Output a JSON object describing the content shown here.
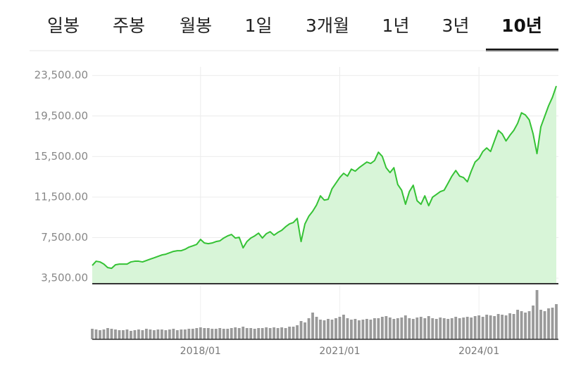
{
  "tabs": [
    "일봉",
    "주봉",
    "월봉",
    "1일",
    "3개월",
    "1년",
    "3년",
    "10년"
  ],
  "selected_tab": 7,
  "chart_data": [
    {
      "type": "area",
      "color": "#35c235",
      "fill": "#d8f5d8",
      "x": [
        "2015/09",
        "2015/10",
        "2015/11",
        "2015/12",
        "2016/01",
        "2016/02",
        "2016/03",
        "2016/04",
        "2016/05",
        "2016/06",
        "2016/07",
        "2016/08",
        "2016/09",
        "2016/10",
        "2016/11",
        "2016/12",
        "2017/01",
        "2017/02",
        "2017/03",
        "2017/04",
        "2017/05",
        "2017/06",
        "2017/07",
        "2017/08",
        "2017/09",
        "2017/10",
        "2017/11",
        "2017/12",
        "2018/01",
        "2018/02",
        "2018/03",
        "2018/04",
        "2018/05",
        "2018/06",
        "2018/07",
        "2018/08",
        "2018/09",
        "2018/10",
        "2018/11",
        "2018/12",
        "2019/01",
        "2019/02",
        "2019/03",
        "2019/04",
        "2019/05",
        "2019/06",
        "2019/07",
        "2019/08",
        "2019/09",
        "2019/10",
        "2019/11",
        "2019/12",
        "2020/01",
        "2020/02",
        "2020/03",
        "2020/04",
        "2020/05",
        "2020/06",
        "2020/07",
        "2020/08",
        "2020/09",
        "2020/10",
        "2020/11",
        "2020/12",
        "2021/01",
        "2021/02",
        "2021/03",
        "2021/04",
        "2021/05",
        "2021/06",
        "2021/07",
        "2021/08",
        "2021/09",
        "2021/10",
        "2021/11",
        "2021/12",
        "2022/01",
        "2022/02",
        "2022/03",
        "2022/04",
        "2022/05",
        "2022/06",
        "2022/07",
        "2022/08",
        "2022/09",
        "2022/10",
        "2022/11",
        "2022/12",
        "2023/01",
        "2023/02",
        "2023/03",
        "2023/04",
        "2023/05",
        "2023/06",
        "2023/07",
        "2023/08",
        "2023/09",
        "2023/10",
        "2023/11",
        "2023/12",
        "2024/01",
        "2024/02",
        "2024/03",
        "2024/04",
        "2024/05",
        "2024/06",
        "2024/07",
        "2024/08",
        "2024/09",
        "2024/10",
        "2024/11",
        "2024/12",
        "2025/01",
        "2025/02",
        "2025/03",
        "2025/04",
        "2025/05",
        "2025/06",
        "2025/07",
        "2025/08",
        "2025/09"
      ],
      "values": [
        4750,
        5170,
        5100,
        4890,
        4540,
        4470,
        4820,
        4890,
        4890,
        4890,
        5100,
        5170,
        5170,
        5100,
        5240,
        5380,
        5510,
        5650,
        5790,
        5860,
        6000,
        6140,
        6210,
        6210,
        6350,
        6560,
        6690,
        6830,
        7320,
        6970,
        6900,
        6970,
        7110,
        7180,
        7460,
        7670,
        7810,
        7460,
        7530,
        6490,
        7110,
        7460,
        7670,
        7940,
        7460,
        7880,
        8080,
        7740,
        8010,
        8220,
        8570,
        8850,
        8990,
        9400,
        7110,
        8850,
        9610,
        10100,
        10720,
        11620,
        11200,
        11280,
        12320,
        12870,
        13430,
        13850,
        13570,
        14260,
        14060,
        14400,
        14680,
        14960,
        14820,
        15100,
        15930,
        15510,
        14400,
        13920,
        14400,
        12740,
        12180,
        10790,
        12040,
        12670,
        11140,
        10790,
        11620,
        10650,
        11490,
        11760,
        12040,
        12180,
        12870,
        13570,
        14120,
        13570,
        13430,
        13010,
        14060,
        14960,
        15310,
        16000,
        16350,
        16000,
        17040,
        18080,
        17740,
        17040,
        17600,
        18080,
        18780,
        19820,
        19610,
        19120,
        17740,
        15790,
        18430,
        19470,
        20510,
        21350,
        22460
      ],
      "ylim": [
        2950,
        24350
      ],
      "yticks": [
        {
          "value": 23500,
          "label": "23,500.00"
        },
        {
          "value": 19500,
          "label": "19,500.00"
        },
        {
          "value": 15500,
          "label": "15,500.00"
        },
        {
          "value": 11500,
          "label": "11,500.00"
        },
        {
          "value": 7500,
          "label": "7,500.00"
        },
        {
          "value": 3500,
          "label": "3,500.00"
        }
      ],
      "grid": true
    },
    {
      "type": "bar",
      "color": "#9a9a9a",
      "x": [
        "2015/09",
        "2015/10",
        "2015/11",
        "2015/12",
        "2016/01",
        "2016/02",
        "2016/03",
        "2016/04",
        "2016/05",
        "2016/06",
        "2016/07",
        "2016/08",
        "2016/09",
        "2016/10",
        "2016/11",
        "2016/12",
        "2017/01",
        "2017/02",
        "2017/03",
        "2017/04",
        "2017/05",
        "2017/06",
        "2017/07",
        "2017/08",
        "2017/09",
        "2017/10",
        "2017/11",
        "2017/12",
        "2018/01",
        "2018/02",
        "2018/03",
        "2018/04",
        "2018/05",
        "2018/06",
        "2018/07",
        "2018/08",
        "2018/09",
        "2018/10",
        "2018/11",
        "2018/12",
        "2019/01",
        "2019/02",
        "2019/03",
        "2019/04",
        "2019/05",
        "2019/06",
        "2019/07",
        "2019/08",
        "2019/09",
        "2019/10",
        "2019/11",
        "2019/12",
        "2020/01",
        "2020/02",
        "2020/03",
        "2020/04",
        "2020/05",
        "2020/06",
        "2020/07",
        "2020/08",
        "2020/09",
        "2020/10",
        "2020/11",
        "2020/12",
        "2021/01",
        "2021/02",
        "2021/03",
        "2021/04",
        "2021/05",
        "2021/06",
        "2021/07",
        "2021/08",
        "2021/09",
        "2021/10",
        "2021/11",
        "2021/12",
        "2022/01",
        "2022/02",
        "2022/03",
        "2022/04",
        "2022/05",
        "2022/06",
        "2022/07",
        "2022/08",
        "2022/09",
        "2022/10",
        "2022/11",
        "2022/12",
        "2023/01",
        "2023/02",
        "2023/03",
        "2023/04",
        "2023/05",
        "2023/06",
        "2023/07",
        "2023/08",
        "2023/09",
        "2023/10",
        "2023/11",
        "2023/12",
        "2024/01",
        "2024/02",
        "2024/03",
        "2024/04",
        "2024/05",
        "2024/06",
        "2024/07",
        "2024/08",
        "2024/09",
        "2024/10",
        "2024/11",
        "2024/12",
        "2025/01",
        "2025/02",
        "2025/03",
        "2025/04",
        "2025/05",
        "2025/06",
        "2025/07",
        "2025/08",
        "2025/09"
      ],
      "values": [
        15,
        14,
        13,
        14,
        16,
        15,
        14,
        13,
        13,
        14,
        12,
        13,
        14,
        13,
        15,
        14,
        13,
        14,
        14,
        13,
        14,
        15,
        13,
        14,
        14,
        15,
        15,
        16,
        17,
        16,
        16,
        15,
        15,
        16,
        15,
        15,
        16,
        17,
        16,
        18,
        16,
        16,
        15,
        16,
        16,
        17,
        16,
        17,
        16,
        17,
        16,
        18,
        18,
        20,
        26,
        24,
        30,
        38,
        32,
        28,
        27,
        29,
        28,
        30,
        32,
        35,
        30,
        28,
        29,
        27,
        28,
        29,
        28,
        30,
        30,
        32,
        33,
        31,
        29,
        30,
        31,
        34,
        30,
        29,
        31,
        32,
        30,
        33,
        30,
        29,
        31,
        30,
        29,
        30,
        32,
        30,
        31,
        32,
        31,
        33,
        34,
        32,
        35,
        34,
        33,
        36,
        35,
        34,
        37,
        36,
        42,
        40,
        38,
        40,
        48,
        70,
        42,
        40,
        44,
        45,
        50
      ],
      "ylim": [
        0,
        75
      ],
      "xticks": [
        "2018/01",
        "2021/01",
        "2024/01"
      ]
    }
  ]
}
